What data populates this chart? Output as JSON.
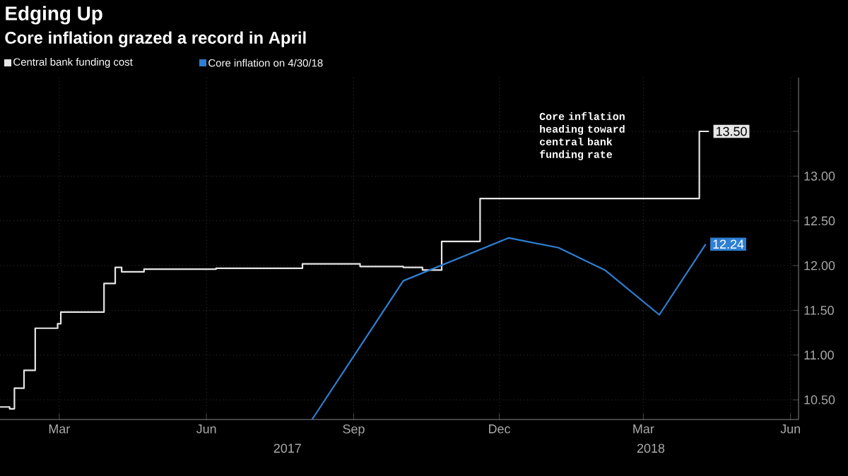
{
  "chart_data": {
    "type": "line",
    "title": "Edging Up",
    "subtitle": "Core inflation grazed a record in April",
    "xlim": [
      "2017-01-23",
      "2018-06-06"
    ],
    "ylim": [
      10.28,
      14.1
    ],
    "xticks": [
      {
        "value": "2017-03-01",
        "label": "Mar"
      },
      {
        "value": "2017-06-01",
        "label": "Jun"
      },
      {
        "value": "2017-09-01",
        "label": "Sep"
      },
      {
        "value": "2017-12-01",
        "label": "Dec"
      },
      {
        "value": "2018-03-01",
        "label": "Mar"
      },
      {
        "value": "2018-06-01",
        "label": "Jun"
      }
    ],
    "yticks": [
      {
        "value": 10.5,
        "label": "10.50"
      },
      {
        "value": 11,
        "label": "11.00"
      },
      {
        "value": 11.5,
        "label": "11.50"
      },
      {
        "value": 12,
        "label": "12.00"
      },
      {
        "value": 12.5,
        "label": "12.50"
      },
      {
        "value": 13,
        "label": "13.00"
      },
      {
        "value": 13.5,
        "label": null
      }
    ],
    "grid": true,
    "legend": "top left",
    "marker": "none",
    "line_style": "solid",
    "series": [
      {
        "name": "Central bank funding cost",
        "color": "#e6e6e6",
        "type": "step",
        "x": [
          "2017-01-23",
          "2017-01-29",
          "2017-02-01",
          "2017-02-07",
          "2017-02-14",
          "2017-02-28",
          "2017-03-02",
          "2017-03-27",
          "2017-03-29",
          "2017-04-05",
          "2017-04-09",
          "2017-04-23",
          "2017-06-07",
          "2017-07-31",
          "2017-09-05",
          "2017-10-02",
          "2017-10-14",
          "2017-10-26",
          "2017-11-19",
          "2018-04-05",
          "2018-04-11"
        ],
        "values": [
          10.42,
          10.4,
          10.63,
          10.83,
          11.3,
          11.35,
          11.48,
          11.48,
          11.8,
          11.98,
          11.93,
          11.96,
          11.97,
          12.02,
          11.99,
          11.98,
          11.95,
          12.27,
          12.75,
          13.5,
          13.5
        ],
        "value_labels": [
          null,
          null,
          null,
          null,
          null,
          null,
          null,
          null,
          null,
          null,
          null,
          null,
          null,
          null,
          null,
          null,
          null,
          null,
          null,
          null,
          "13.50"
        ]
      },
      {
        "name": "Core inflation on 4/30/18",
        "color": "#2e7fd4",
        "x": [
          "2017-08-06",
          "2017-10-02",
          "2017-12-07",
          "2018-01-07",
          "2018-02-05",
          "2018-03-11",
          "2018-04-09"
        ],
        "values": [
          10.28,
          11.83,
          12.31,
          12.2,
          11.95,
          11.45,
          12.24
        ],
        "value_labels": [
          null,
          null,
          null,
          null,
          null,
          null,
          "12.24"
        ]
      }
    ],
    "annotations": [
      "Core inflation heading toward central bank funding rate",
      "2017",
      "2018"
    ]
  }
}
